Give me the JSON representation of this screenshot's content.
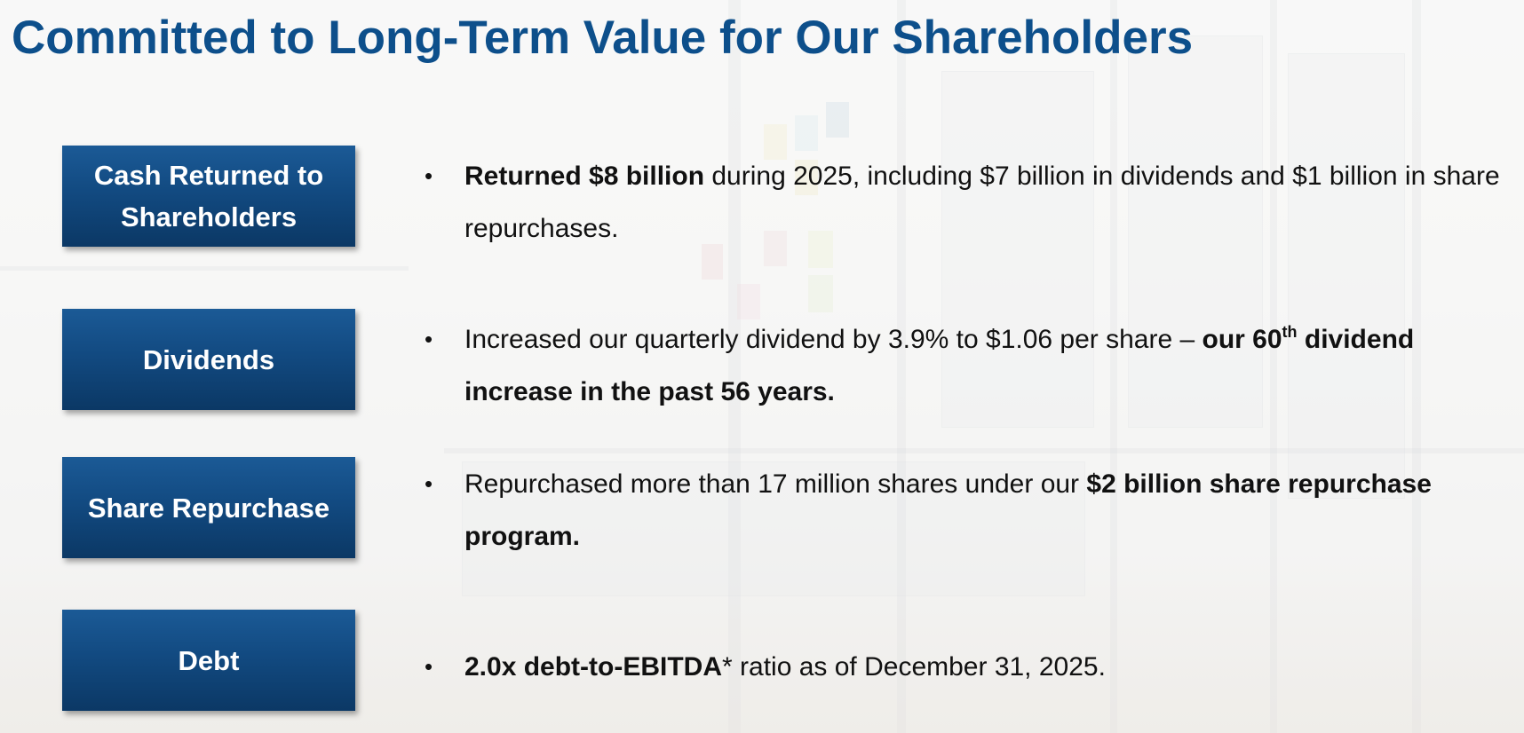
{
  "slide": {
    "title": "Committed to Long-Term Value for Our Shareholders"
  },
  "sections": [
    {
      "label": "Cash Returned to Shareholders",
      "bullet": {
        "bold_lead": "Returned $8 billion",
        "text": " during 2025, including $7 billion in dividends and $1 billion in share repurchases."
      }
    },
    {
      "label": "Dividends",
      "bullet": {
        "text": "Increased our quarterly dividend by 3.9% to $1.06 per share – ",
        "bold_a": "our 60",
        "sup": "th",
        "bold_b": " dividend increase in the past 56 years."
      }
    },
    {
      "label": "Share Repurchase",
      "bullet": {
        "text": "Repurchased more than 17 million shares under our ",
        "bold_tail": "$2 billion share repurchase program."
      }
    },
    {
      "label": "Debt",
      "bullet": {
        "bold_lead": "2.0x debt-to-EBITDA",
        "text": "* ratio as of December 31, 2025."
      }
    }
  ],
  "bullet_glyph": "•",
  "colors": {
    "title": "#0d4f8b",
    "label_box": "#124a81",
    "label_text": "#ffffff",
    "body_text": "#111111"
  }
}
